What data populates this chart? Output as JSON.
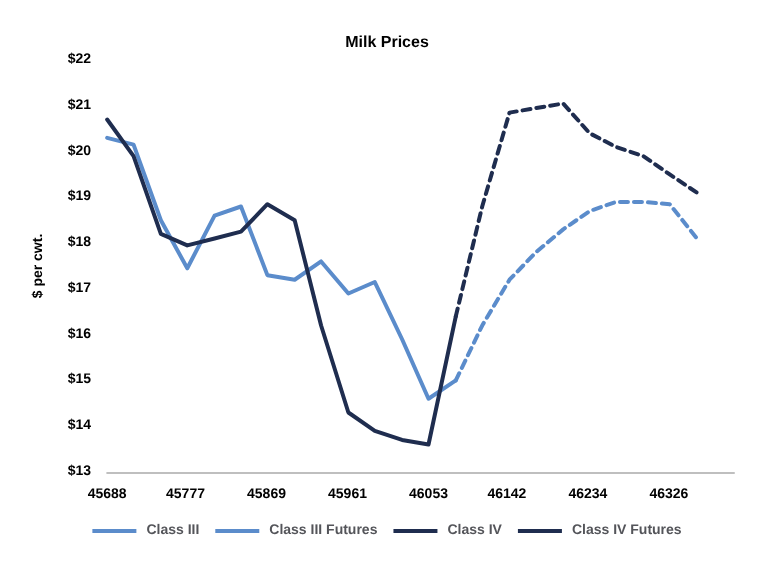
{
  "chart_data": {
    "type": "line",
    "title": "Milk Prices",
    "ylabel": "$ per cwt.",
    "xlim": [
      45688,
      46400
    ],
    "xticks": [
      45688,
      45777,
      45869,
      45961,
      46053,
      46142,
      46234,
      46326
    ],
    "ylim": [
      13,
      22
    ],
    "yticks": [
      {
        "value": 13,
        "label": "$13"
      },
      {
        "value": 14,
        "label": "$14"
      },
      {
        "value": 15,
        "label": "$15"
      },
      {
        "value": 16,
        "label": "$16"
      },
      {
        "value": 17,
        "label": "$17"
      },
      {
        "value": 18,
        "label": "$18"
      },
      {
        "value": 19,
        "label": "$19"
      },
      {
        "value": 20,
        "label": "$20"
      },
      {
        "value": 21,
        "label": "$21"
      },
      {
        "value": 22,
        "label": "$22"
      }
    ],
    "grid": false,
    "legend": "bottom",
    "marker": "none",
    "series": [
      {
        "name": "Class III",
        "color": "#5b8ccb",
        "line_style": "solid",
        "x": [
          45688,
          45718,
          45749,
          45779,
          45810,
          45840,
          45870,
          45901,
          45931,
          45962,
          45992,
          46023,
          46053,
          46084
        ],
        "values": [
          20.3,
          20.15,
          18.5,
          17.45,
          18.6,
          18.8,
          17.3,
          17.2,
          17.6,
          16.9,
          17.15,
          15.9,
          14.6,
          15.0
        ]
      },
      {
        "name": "Class III Futures",
        "color": "#5b8ccb",
        "line_style": "dashed",
        "x": [
          46084,
          46114,
          46145,
          46175,
          46206,
          46236,
          46266,
          46297,
          46327,
          46358
        ],
        "values": [
          15.0,
          16.2,
          17.2,
          17.8,
          18.3,
          18.7,
          18.9,
          18.9,
          18.85,
          18.1
        ]
      },
      {
        "name": "Class IV",
        "color": "#1f2d4f",
        "line_style": "solid",
        "x": [
          45688,
          45718,
          45749,
          45779,
          45810,
          45840,
          45870,
          45901,
          45931,
          45962,
          45992,
          46023,
          46053,
          46084
        ],
        "values": [
          20.7,
          19.9,
          18.2,
          17.95,
          18.1,
          18.25,
          18.85,
          18.5,
          16.2,
          14.3,
          13.9,
          13.7,
          13.6,
          16.4
        ]
      },
      {
        "name": "Class IV Futures",
        "color": "#1f2d4f",
        "line_style": "dashed",
        "x": [
          46084,
          46114,
          46145,
          46175,
          46206,
          46236,
          46266,
          46297,
          46327,
          46358
        ],
        "values": [
          16.4,
          18.8,
          20.85,
          20.95,
          21.05,
          20.4,
          20.1,
          19.9,
          19.5,
          19.1
        ]
      }
    ]
  }
}
